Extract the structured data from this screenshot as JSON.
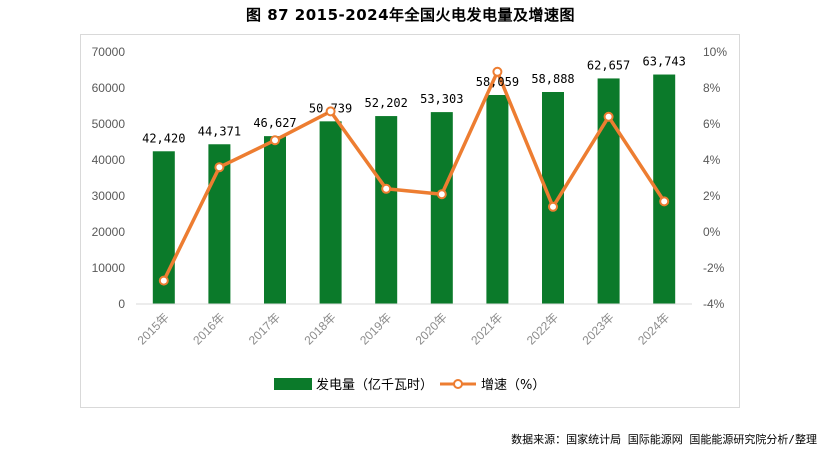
{
  "chart_data": {
    "type": "bar",
    "title": "图 87 2015-2024年全国火电发电量及增速图",
    "categories": [
      "2015年",
      "2016年",
      "2017年",
      "2018年",
      "2019年",
      "2020年",
      "2021年",
      "2022年",
      "2023年",
      "2024年"
    ],
    "series": [
      {
        "name": "发电量（亿千瓦时）",
        "type": "bar",
        "axis": "left",
        "color": "#0b7a2a",
        "values": [
          42420,
          44371,
          46627,
          50739,
          52202,
          53303,
          58059,
          58888,
          62657,
          63743
        ],
        "labels": [
          "42,420",
          "44,371",
          "46,627",
          "50,739",
          "52,202",
          "53,303",
          "58,059",
          "58,888",
          "62,657",
          "63,743"
        ]
      },
      {
        "name": "增速（%）",
        "type": "line",
        "axis": "right",
        "color": "#ed7d31",
        "values": [
          -2.7,
          3.6,
          5.1,
          6.7,
          2.4,
          2.1,
          8.9,
          1.4,
          6.4,
          1.7
        ]
      }
    ],
    "y_left": {
      "min": 0,
      "max": 70000,
      "ticks": [
        0,
        10000,
        20000,
        30000,
        40000,
        50000,
        60000,
        70000
      ],
      "tick_labels": [
        "0",
        "10000",
        "20000",
        "30000",
        "40000",
        "50000",
        "60000",
        "70000"
      ]
    },
    "y_right": {
      "min": -4,
      "max": 10,
      "ticks": [
        -4,
        -2,
        0,
        2,
        4,
        6,
        8,
        10
      ],
      "tick_labels": [
        "-4%",
        "-2%",
        "0%",
        "2%",
        "4%",
        "6%",
        "8%",
        "10%"
      ]
    },
    "grid": false,
    "legend": "bottom-center"
  },
  "source": "数据来源：国家统计局 国际能源网 国能能源研究院分析/整理"
}
